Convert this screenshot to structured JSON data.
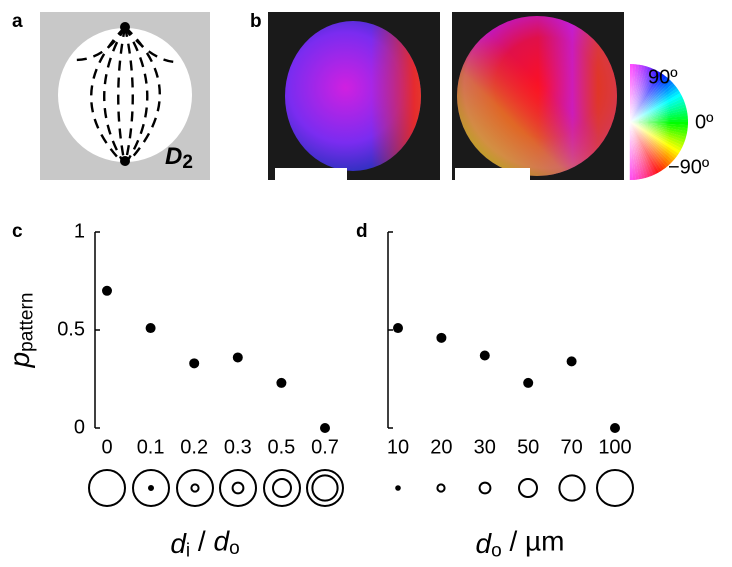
{
  "panel_labels": [
    "a",
    "b",
    "c",
    "d"
  ],
  "panel_a": {
    "label_main": "D",
    "label_sub": "2"
  },
  "panel_b": {
    "colorbar_ticks": [
      "90º",
      "0º",
      "−90º"
    ]
  },
  "chart_data": [
    {
      "type": "scatter",
      "categories": [
        "0",
        "0.1",
        "0.2",
        "0.3",
        "0.5",
        "0.7"
      ],
      "values": [
        0.7,
        0.51,
        0.33,
        0.36,
        0.23,
        0
      ],
      "color": "#000000",
      "ylim": [
        0,
        1
      ],
      "yticks": [
        0,
        0.5,
        1
      ],
      "ytick_labels": true,
      "ylabel": [
        {
          "text": "p",
          "style": "italic"
        },
        {
          "text": "pattern",
          "style": "sub"
        }
      ],
      "xlabel": [
        {
          "text": "d",
          "style": "italic"
        },
        {
          "text": "i",
          "style": "sub"
        },
        {
          "text": " / ",
          "style": "plain"
        },
        {
          "text": "d",
          "style": "italic"
        },
        {
          "text": "o",
          "style": "sub"
        }
      ]
    },
    {
      "type": "scatter",
      "categories": [
        "10",
        "20",
        "30",
        "50",
        "70",
        "100"
      ],
      "values": [
        0.51,
        0.46,
        0.37,
        0.23,
        0.34,
        0
      ],
      "color": "#000000",
      "ylim": [
        0,
        1
      ],
      "yticks": [
        0,
        0.5,
        1
      ],
      "ytick_labels": false,
      "xlabel": [
        {
          "text": "d",
          "style": "italic"
        },
        {
          "text": "o",
          "style": "sub"
        },
        {
          "text": " / µm",
          "style": "plain"
        }
      ]
    }
  ]
}
